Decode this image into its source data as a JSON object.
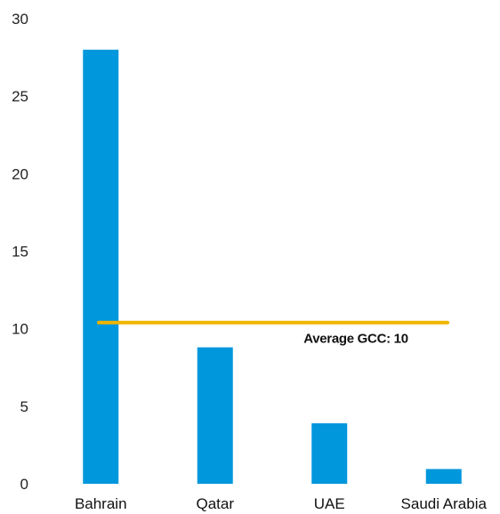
{
  "chart_data": {
    "type": "bar",
    "categories": [
      "Bahrain",
      "Qatar",
      "UAE",
      "Saudi Arabia"
    ],
    "values": [
      28,
      8.8,
      3.9,
      0.95
    ],
    "ylim": [
      0,
      30
    ],
    "y_ticks": [
      0,
      5,
      10,
      15,
      20,
      25,
      30
    ],
    "grid": false,
    "legend": "none",
    "bar_color": "#0097DC",
    "reference_line": {
      "value": 10.4,
      "color": "#F0B400",
      "label": "Average GCC: 10"
    }
  }
}
